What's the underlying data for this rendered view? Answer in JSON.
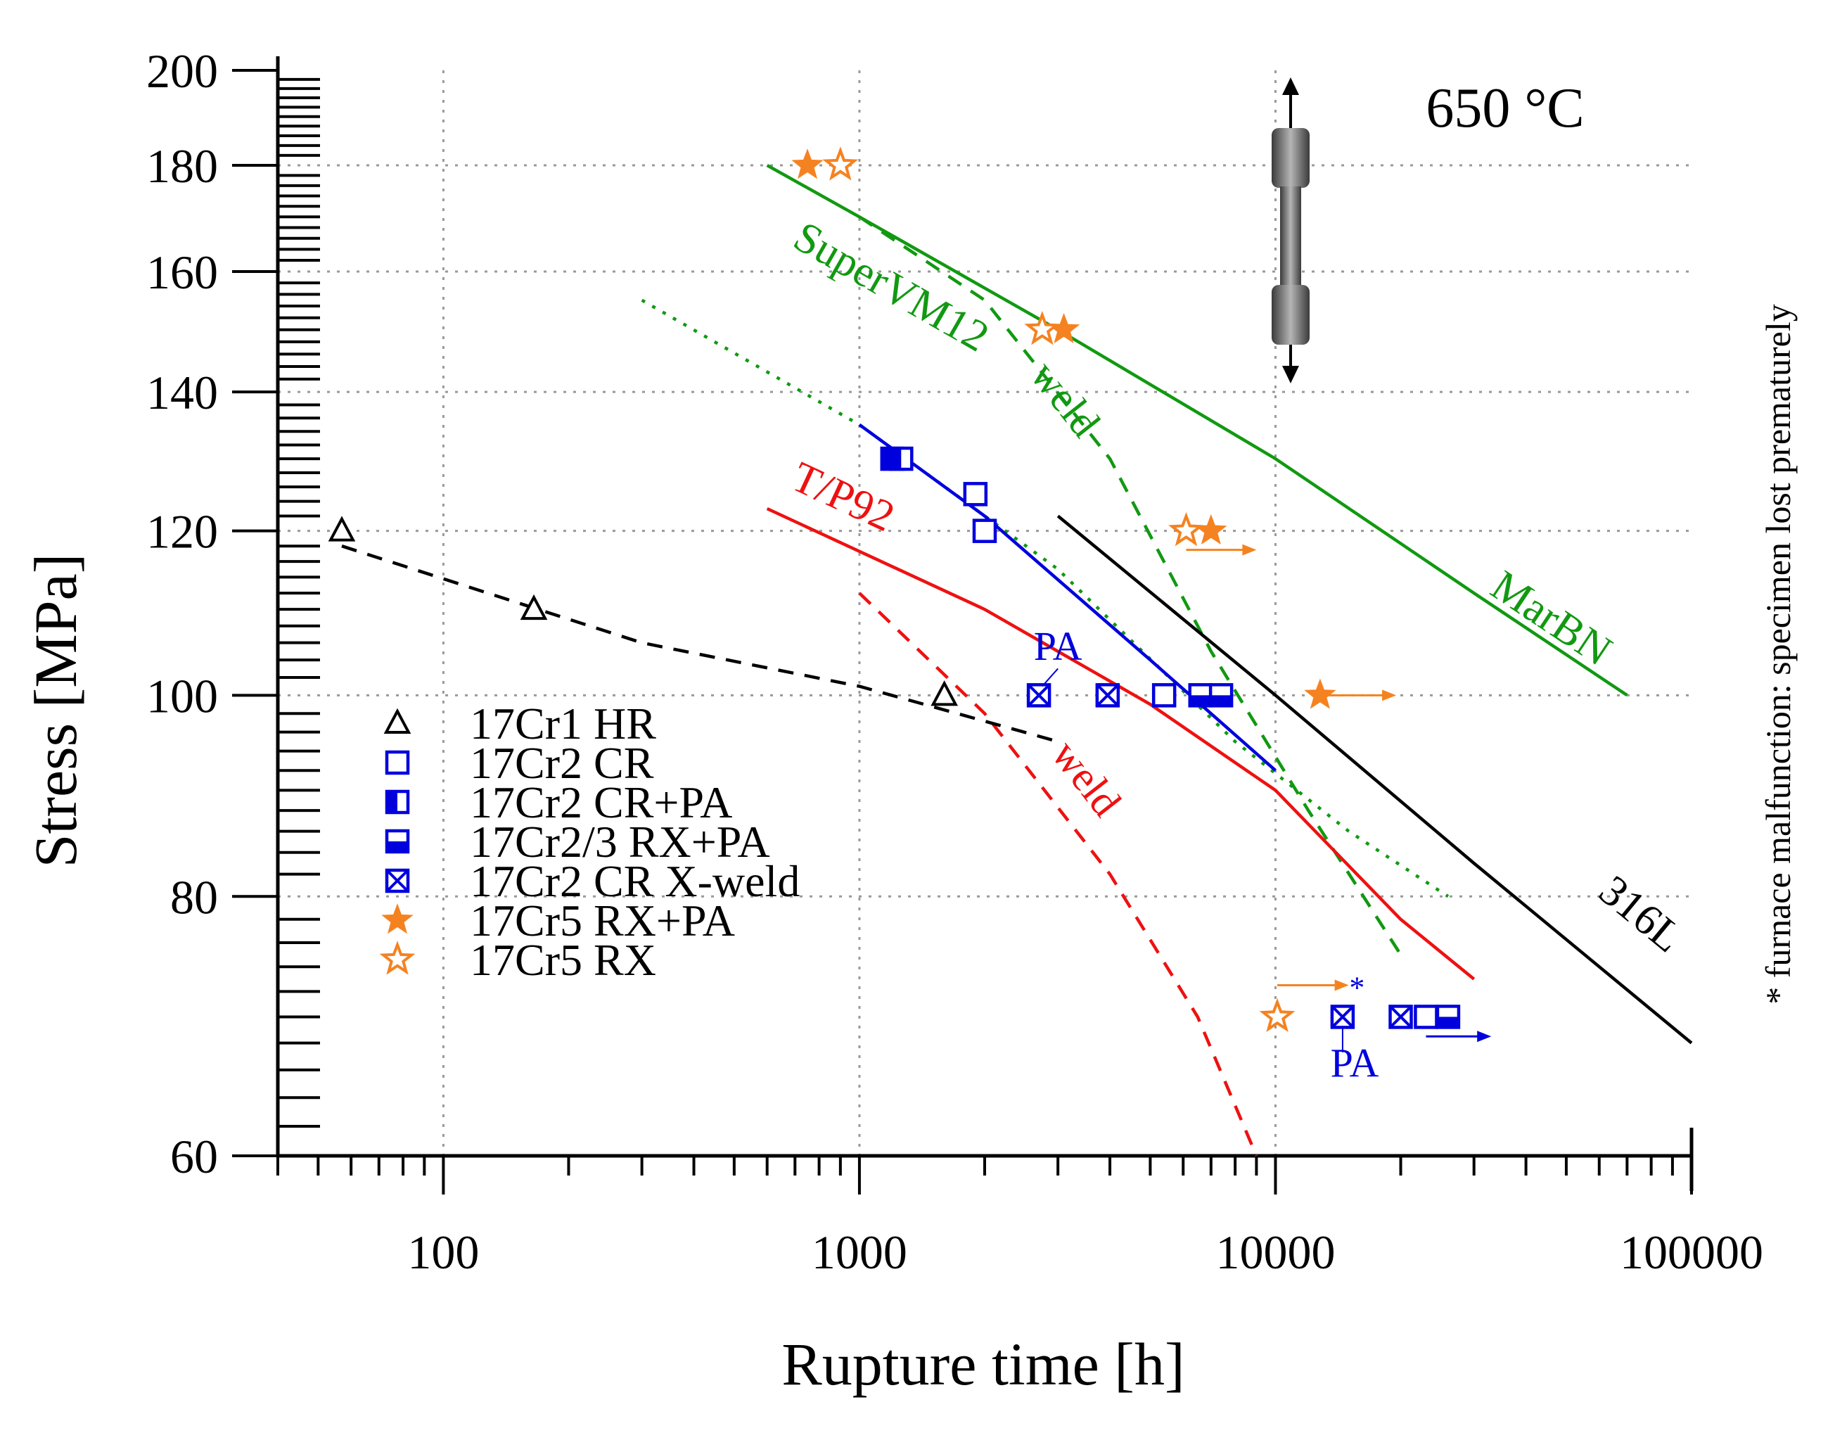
{
  "chart_data": {
    "type": "scatter",
    "title": "650 °C",
    "xlabel": "Rupture time [h]",
    "ylabel": "Stress [MPa]",
    "xscale": "log",
    "yscale": "log",
    "xlim": [
      40,
      100000
    ],
    "ylim": [
      60,
      200
    ],
    "grid": true,
    "x_ticks": [
      100,
      1000,
      10000,
      100000
    ],
    "x_tick_labels": [
      "100",
      "1000",
      "10000",
      "100000"
    ],
    "y_ticks": [
      60,
      80,
      100,
      120,
      140,
      160,
      180,
      200
    ],
    "y_tick_labels": [
      "60",
      "80",
      "100",
      "120",
      "140",
      "160",
      "180",
      "200"
    ],
    "legend_position": "bottom-left",
    "side_note": "* furnace malfunction: specimen lost prematurely",
    "series": [
      {
        "name": "17Cr1 HR",
        "marker": "triangle-open",
        "color": "#000000",
        "points": [
          [
            57,
            120
          ],
          [
            165,
            110
          ],
          [
            1600,
            100
          ]
        ]
      },
      {
        "name": "17Cr2 CR",
        "marker": "square-open",
        "color": "#0000dd",
        "points": [
          [
            1900,
            125
          ],
          [
            2000,
            120
          ],
          [
            5400,
            100
          ],
          [
            23000,
            70
          ]
        ]
      },
      {
        "name": "17Cr2 CR+PA",
        "marker": "square-half-left",
        "color": "#0000dd",
        "points": [
          [
            1200,
            130
          ],
          [
            1260,
            130
          ]
        ]
      },
      {
        "name": "17Cr2/3 RX+PA",
        "marker": "square-half-bottom",
        "color": "#0000dd",
        "points": [
          [
            6600,
            100
          ],
          [
            7400,
            100
          ],
          [
            26000,
            70
          ]
        ]
      },
      {
        "name": "17Cr2 CR X-weld",
        "marker": "square-cross",
        "color": "#0000dd",
        "points": [
          [
            2700,
            100
          ],
          [
            3950,
            100
          ],
          [
            14500,
            70
          ],
          [
            20000,
            70
          ]
        ]
      },
      {
        "name": "17Cr5 RX+PA",
        "marker": "star-filled",
        "color": "#f58220",
        "points": [
          [
            750,
            180
          ],
          [
            3100,
            150
          ],
          [
            7000,
            120
          ],
          [
            12800,
            100
          ]
        ]
      },
      {
        "name": "17Cr5 RX",
        "marker": "star-open",
        "color": "#f58220",
        "points": [
          [
            900,
            180
          ],
          [
            2750,
            150
          ],
          [
            6100,
            120
          ],
          [
            10100,
            70
          ]
        ]
      }
    ],
    "reference_curves": [
      {
        "name": "MarBN",
        "color": "#119911",
        "style": "solid",
        "points": [
          [
            600,
            180
          ],
          [
            1000,
            170
          ],
          [
            3000,
            150
          ],
          [
            10000,
            130
          ],
          [
            30000,
            112
          ],
          [
            70000,
            100
          ]
        ]
      },
      {
        "name": "weld",
        "color": "#119911",
        "style": "dashed",
        "points": [
          [
            1000,
            170
          ],
          [
            2000,
            155
          ],
          [
            4000,
            130
          ],
          [
            7000,
            105
          ],
          [
            12000,
            88
          ],
          [
            20000,
            75
          ]
        ]
      },
      {
        "name": "SuperVM12",
        "color": "#119911",
        "style": "dotted",
        "points": [
          [
            300,
            155
          ],
          [
            1000,
            135
          ],
          [
            3000,
            115
          ],
          [
            8000,
            95
          ],
          [
            15000,
            86
          ],
          [
            26000,
            80
          ]
        ]
      },
      {
        "name": "",
        "color": "#0000dd",
        "style": "solid",
        "points": [
          [
            1000,
            135
          ],
          [
            2000,
            122
          ],
          [
            5000,
            104
          ],
          [
            10000,
            92
          ]
        ]
      },
      {
        "name": "T/P92",
        "color": "#ee1111",
        "style": "solid",
        "points": [
          [
            600,
            123
          ],
          [
            2000,
            110
          ],
          [
            5000,
            99
          ],
          [
            10000,
            90
          ],
          [
            20000,
            78
          ],
          [
            30000,
            73
          ]
        ]
      },
      {
        "name": "weld",
        "color": "#ee1111",
        "style": "dashed",
        "points": [
          [
            1000,
            112
          ],
          [
            2000,
            98
          ],
          [
            4000,
            82
          ],
          [
            6500,
            70
          ],
          [
            9000,
            60
          ]
        ]
      },
      {
        "name": "",
        "color": "#000000",
        "style": "dashed",
        "points": [
          [
            57,
            118
          ],
          [
            300,
            106
          ],
          [
            1000,
            101
          ],
          [
            3000,
            95
          ]
        ]
      },
      {
        "name": "316L",
        "color": "#000000",
        "style": "solid",
        "points": [
          [
            3000,
            122
          ],
          [
            10000,
            100
          ],
          [
            30000,
            83
          ],
          [
            100000,
            68
          ]
        ]
      }
    ],
    "annotations": [
      {
        "text": "PA",
        "color": "#0000dd",
        "at": [
          3000,
          104
        ]
      },
      {
        "text": "PA",
        "color": "#0000dd",
        "at": [
          15500,
          65.5
        ]
      },
      {
        "text": "*",
        "color": "#0000dd",
        "at": [
          15700,
          71.5
        ]
      }
    ],
    "runout_markers": [
      {
        "color": "#f58220",
        "point": [
          6100,
          117.5
        ],
        "to": [
          9000,
          117.5
        ]
      },
      {
        "color": "#f58220",
        "point": [
          12800,
          100
        ],
        "to": [
          19500,
          100
        ]
      },
      {
        "color": "#f58220",
        "point": [
          10100,
          72.5
        ],
        "to": [
          15000,
          72.5
        ]
      },
      {
        "color": "#0000dd",
        "point": [
          23000,
          68.5
        ],
        "to": [
          33000,
          68.5
        ]
      }
    ]
  }
}
